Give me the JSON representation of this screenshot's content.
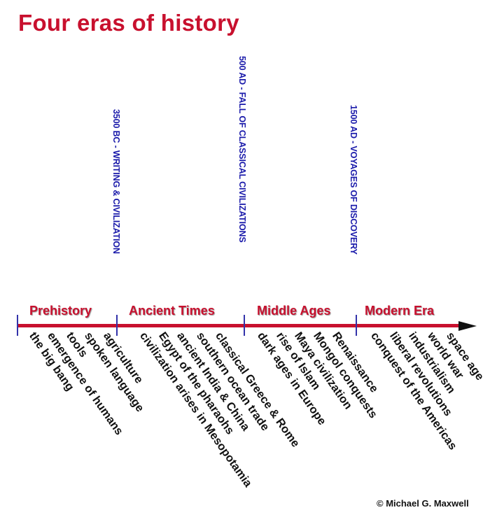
{
  "title": "Four eras of history",
  "eras": [
    "Prehistory",
    "Ancient Times",
    "Middle Ages",
    "Modern Era"
  ],
  "milestones": [
    "3500 BC - WRITING & CIVILIZATION",
    "500 AD - FALL OF CLASSICAL CIVILIZATIONS",
    "1500 AD - VOYAGES OF DISCOVERY"
  ],
  "events": [
    "the big bang",
    "emergence of humans",
    "tools",
    "spoken language",
    "agriculture",
    "civilization arises in Mesopotamia",
    "Egypt of the pharaohs",
    "ancient India & China",
    "southern ocean trade",
    "classical Greece & Rome",
    "dark ages in Europe",
    "rise of Islam",
    "Maya civilization",
    "Mongol conquests",
    "Renaissance",
    "conquest of the Americas",
    "liberal revolutions",
    "industrialism",
    "world war",
    "space age"
  ],
  "copyright": "© Michael G. Maxwell",
  "colors": {
    "title": "#c8102e",
    "axis": "#c8102e",
    "milestone": "#1a1aaa",
    "text": "#111111"
  }
}
